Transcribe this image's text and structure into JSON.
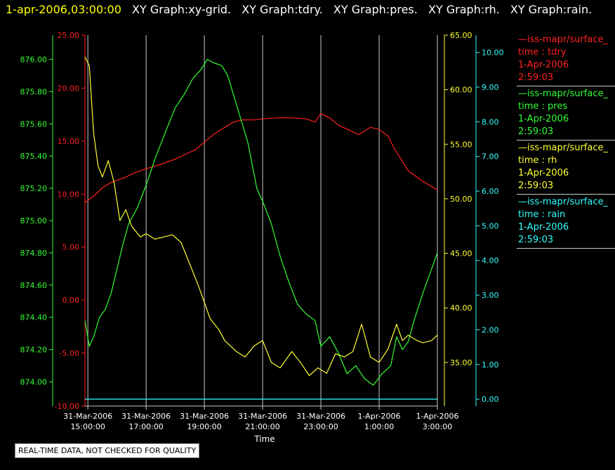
{
  "header": {
    "timestamp": "1-apr-2006,03:00:00",
    "items": [
      "XY Graph:xy-grid.",
      "XY Graph:tdry.",
      "XY Graph:pres.",
      "XY Graph:rh.",
      "XY Graph:rain."
    ]
  },
  "notice": "REAL-TIME DATA, NOT CHECKED FOR QUALITY",
  "legend": [
    {
      "line1": "—iss-mapr/surface_",
      "line2": "time : tdry",
      "line3": "1-Apr-2006",
      "line4": "2:59:03",
      "color": "#ff2020"
    },
    {
      "line1": "—iss-mapr/surface_",
      "line2": "time : pres",
      "line3": "1-Apr-2006",
      "line4": "2:59:03",
      "color": "#33ff33"
    },
    {
      "line1": "—iss-mapr/surface_",
      "line2": "time : rh",
      "line3": "1-Apr-2006",
      "line4": "2:59:03",
      "color": "#ffff33"
    },
    {
      "line1": "—iss-mapr/surface_",
      "line2": "time : rain",
      "line3": "1-Apr-2006",
      "line4": "2:59:03",
      "color": "#33ffff"
    }
  ],
  "chart_data": {
    "type": "line",
    "xlabel": "Time",
    "x_ticks": [
      {
        "hour": 15,
        "l1": "31-Mar-2006",
        "l2": "15:00:00"
      },
      {
        "hour": 17,
        "l1": "31-Mar-2006",
        "l2": "17:00:00"
      },
      {
        "hour": 19,
        "l1": "31-Mar-2006",
        "l2": "19:00:00"
      },
      {
        "hour": 21,
        "l1": "31-Mar-2006",
        "l2": "21:00:00"
      },
      {
        "hour": 23,
        "l1": "31-Mar-2006",
        "l2": "23:00:00"
      },
      {
        "hour": 25,
        "l1": "1-Apr-2006",
        "l2": "1:00:00"
      },
      {
        "hour": 27,
        "l1": "1-Apr-2006",
        "l2": "3:00:00"
      }
    ],
    "xlim": [
      14.9,
      27.0
    ],
    "grid": true,
    "axes": {
      "tdry": {
        "color": "#ff2020",
        "min": -10,
        "max": 25,
        "ticks": [
          "-10.00",
          "-5.00",
          "0.00",
          "5.00",
          "10.00",
          "15.00",
          "20.00",
          "25.00"
        ]
      },
      "pres": {
        "color": "#33ff33",
        "min": 873.85,
        "max": 876.15,
        "ticks": [
          "874.00",
          "874.20",
          "874.40",
          "874.60",
          "874.80",
          "875.00",
          "875.20",
          "875.40",
          "875.60",
          "875.80",
          "876.00"
        ]
      },
      "rh": {
        "color": "#ffff33",
        "min": 31,
        "max": 65,
        "ticks": [
          "35.00",
          "40.00",
          "45.00",
          "50.00",
          "55.00",
          "60.00",
          "65.00"
        ]
      },
      "rain": {
        "color": "#33ffff",
        "min": -0.2,
        "max": 10.5,
        "ticks": [
          "0.00",
          "1.00",
          "2.00",
          "3.00",
          "4.00",
          "5.00",
          "6.00",
          "7.00",
          "8.00",
          "9.00",
          "10.00"
        ]
      }
    },
    "series": [
      {
        "name": "tdry",
        "color": "#ff2020",
        "x": [
          14.9,
          15.2,
          15.5,
          15.8,
          16.0,
          16.3,
          16.6,
          17.0,
          17.5,
          18.0,
          18.3,
          18.7,
          19.0,
          19.3,
          19.7,
          20.0,
          20.3,
          20.7,
          21.0,
          21.5,
          22.0,
          22.5,
          22.8,
          23.0,
          23.3,
          23.6,
          24.0,
          24.3,
          24.7,
          25.0,
          25.3,
          25.5,
          26.0,
          26.5,
          27.0
        ],
        "y": [
          9.2,
          9.8,
          10.6,
          11.1,
          11.3,
          11.6,
          12.0,
          12.4,
          12.8,
          13.3,
          13.7,
          14.2,
          14.9,
          15.6,
          16.3,
          16.8,
          17.0,
          17.0,
          17.1,
          17.2,
          17.2,
          17.1,
          16.8,
          17.6,
          17.2,
          16.5,
          16.0,
          15.6,
          16.3,
          16.1,
          15.5,
          14.4,
          12.2,
          11.2,
          10.4
        ]
      },
      {
        "name": "pres",
        "color": "#33ff33",
        "x": [
          14.9,
          15.05,
          15.2,
          15.4,
          15.6,
          15.8,
          16.0,
          16.2,
          16.4,
          16.7,
          17.0,
          17.3,
          17.6,
          18.0,
          18.3,
          18.6,
          18.9,
          19.1,
          19.3,
          19.6,
          19.8,
          20.0,
          20.2,
          20.5,
          20.8,
          21.0,
          21.3,
          21.6,
          21.9,
          22.2,
          22.5,
          22.8,
          23.0,
          23.3,
          23.6,
          23.9,
          24.2,
          24.5,
          24.8,
          25.1,
          25.4,
          25.6,
          25.8,
          26.0,
          26.2,
          26.5,
          26.8,
          27.0
        ],
        "y": [
          874.38,
          874.22,
          874.28,
          874.4,
          874.45,
          874.55,
          874.7,
          874.85,
          874.98,
          875.08,
          875.22,
          875.38,
          875.52,
          875.7,
          875.78,
          875.88,
          875.94,
          876.0,
          875.98,
          875.96,
          875.9,
          875.78,
          875.66,
          875.48,
          875.2,
          875.12,
          874.98,
          874.78,
          874.62,
          874.48,
          874.42,
          874.38,
          874.22,
          874.28,
          874.18,
          874.05,
          874.1,
          874.02,
          873.98,
          874.05,
          874.1,
          874.28,
          874.2,
          874.25,
          874.38,
          874.55,
          874.7,
          874.8
        ]
      },
      {
        "name": "rh",
        "color": "#ffff33",
        "x": [
          14.9,
          15.05,
          15.2,
          15.35,
          15.5,
          15.7,
          15.9,
          16.1,
          16.3,
          16.5,
          16.8,
          17.0,
          17.3,
          17.6,
          17.9,
          18.2,
          18.5,
          18.8,
          19.0,
          19.2,
          19.5,
          19.7,
          19.9,
          20.1,
          20.4,
          20.7,
          21.0,
          21.3,
          21.6,
          22.0,
          22.3,
          22.6,
          22.9,
          23.2,
          23.5,
          23.8,
          24.1,
          24.4,
          24.7,
          25.0,
          25.3,
          25.6,
          25.8,
          26.0,
          26.3,
          26.5,
          26.8,
          27.0
        ],
        "y": [
          63.0,
          62.2,
          56.0,
          53.0,
          52.0,
          53.5,
          51.5,
          48.0,
          49.0,
          47.5,
          46.5,
          46.8,
          46.3,
          46.5,
          46.7,
          46.0,
          44.0,
          42.0,
          40.5,
          39.0,
          38.0,
          37.0,
          36.5,
          36.0,
          35.5,
          36.5,
          37.0,
          35.0,
          34.5,
          36.0,
          35.0,
          33.8,
          34.5,
          34.0,
          35.8,
          35.5,
          36.0,
          38.5,
          35.5,
          35.0,
          36.2,
          38.5,
          37.0,
          37.5,
          37.0,
          36.8,
          37.0,
          37.5
        ]
      },
      {
        "name": "rain",
        "color": "#33ffff",
        "x": [
          14.9,
          27.0
        ],
        "y": [
          0.0,
          0.0
        ]
      }
    ]
  }
}
